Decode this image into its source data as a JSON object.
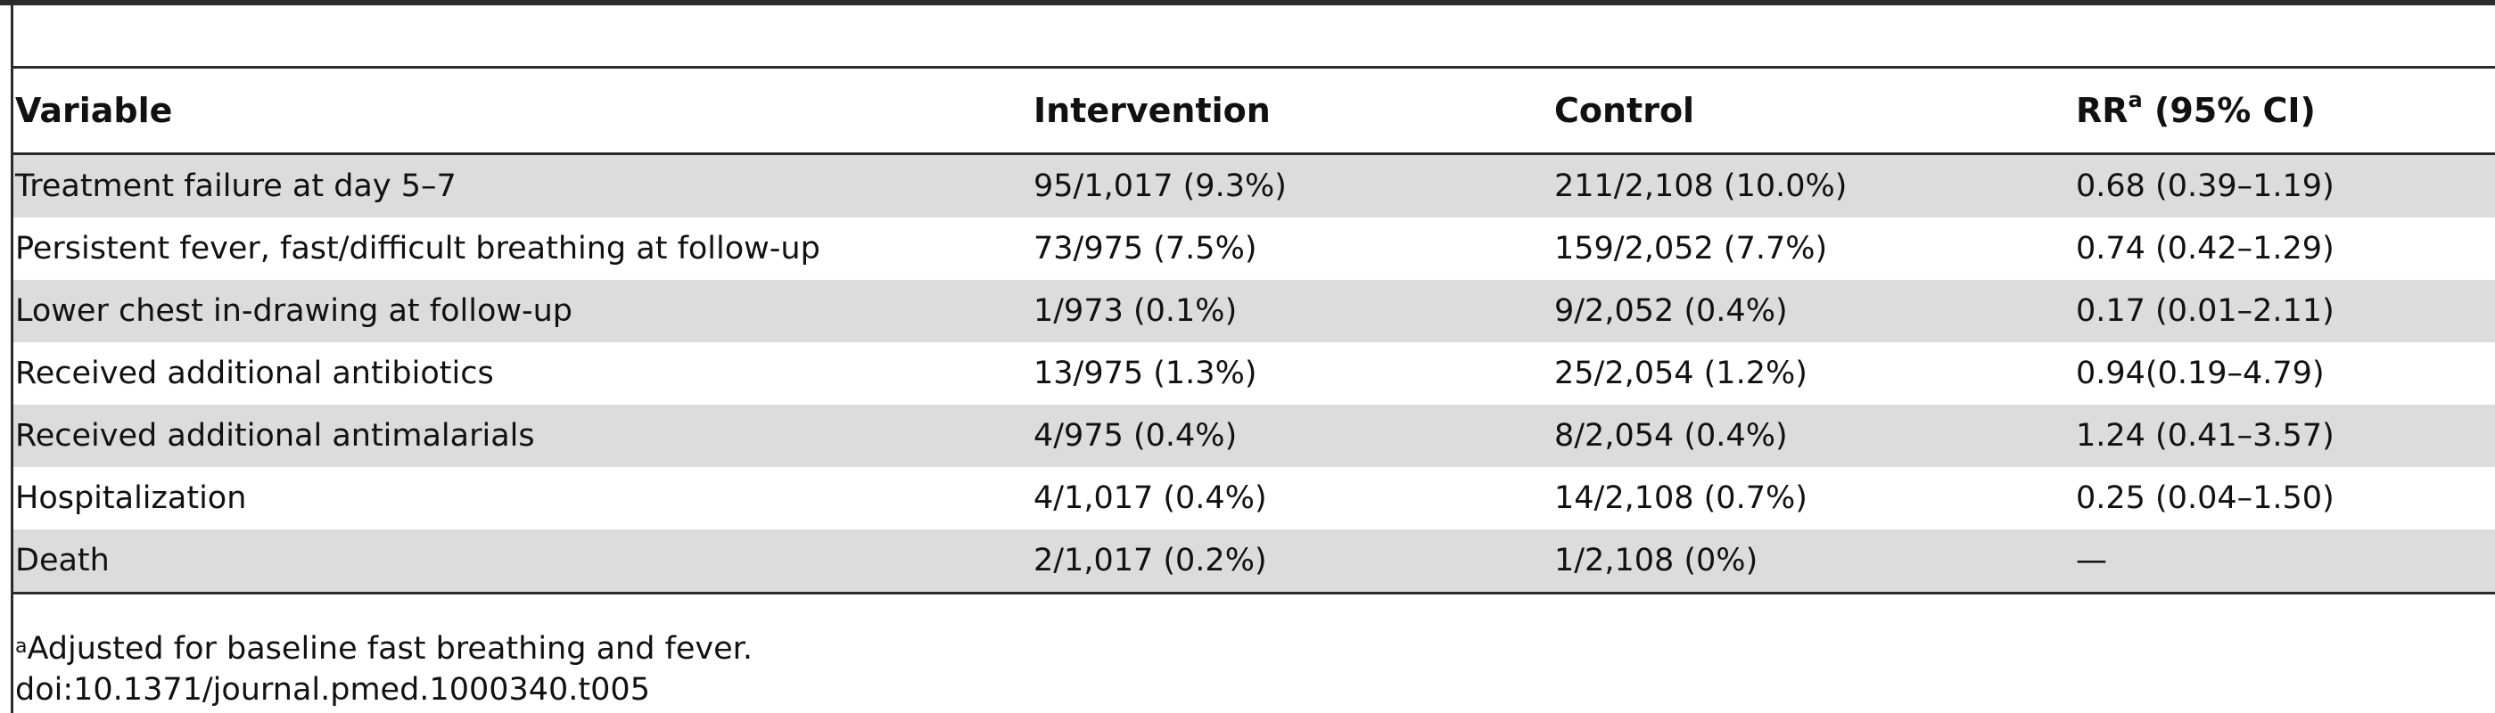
{
  "table": {
    "headers": {
      "variable": "Variable",
      "intervention": "Intervention",
      "control": "Control",
      "rr_main": "RR",
      "rr_sup": "a",
      "rr_suffix": " (95% CI)"
    },
    "rows": [
      {
        "variable": "Treatment failure at day 5–7",
        "intervention": "95/1,017 (9.3%)",
        "control": "211/2,108 (10.0%)",
        "rr": "0.68 (0.39–1.19)"
      },
      {
        "variable": "Persistent fever, fast/difficult breathing at follow-up",
        "intervention": "73/975 (7.5%)",
        "control": "159/2,052 (7.7%)",
        "rr": "0.74 (0.42–1.29)"
      },
      {
        "variable": "Lower chest in-drawing at follow-up",
        "intervention": "1/973 (0.1%)",
        "control": "9/2,052 (0.4%)",
        "rr": "0.17 (0.01–2.11)"
      },
      {
        "variable": "Received additional antibiotics",
        "intervention": "13/975 (1.3%)",
        "control": "25/2,054 (1.2%)",
        "rr": "0.94(0.19–4.79)"
      },
      {
        "variable": "Received additional antimalarials",
        "intervention": "4/975 (0.4%)",
        "control": "8/2,054 (0.4%)",
        "rr": "1.24 (0.41–3.57)"
      },
      {
        "variable": "Hospitalization",
        "intervention": "4/1,017 (0.4%)",
        "control": "14/2,108 (0.7%)",
        "rr": "0.25 (0.04–1.50)"
      },
      {
        "variable": "Death",
        "intervention": "2/1,017 (0.2%)",
        "control": "1/2,108 (0%)",
        "rr": "—"
      }
    ]
  },
  "footnotes": {
    "note_marker": "a",
    "note_text": "Adjusted for baseline fast breathing and fever.",
    "doi": "doi:10.1371/journal.pmed.1000340.t005"
  }
}
